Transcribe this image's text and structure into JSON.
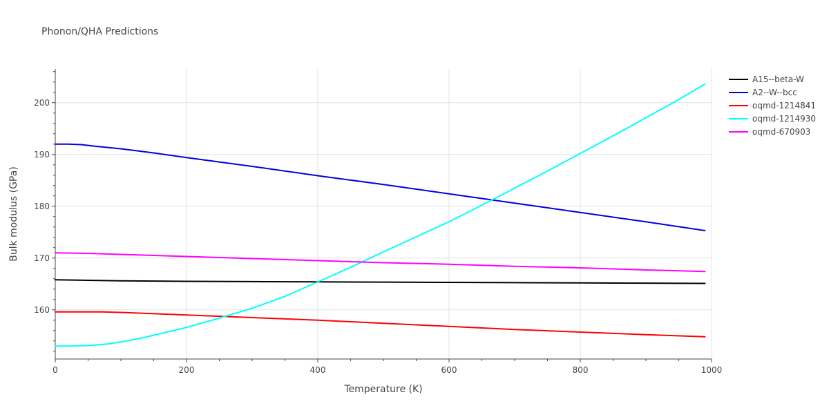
{
  "chart_data": {
    "type": "line",
    "title": "Phonon/QHA Predictions",
    "xlabel": "Temperature (K)",
    "ylabel": "Bulk modulus (GPa)",
    "xlim": [
      0,
      1000
    ],
    "ylim": [
      150.5,
      206.5
    ],
    "x_ticks": [
      0,
      200,
      400,
      600,
      800,
      1000
    ],
    "y_ticks": [
      160,
      170,
      180,
      190,
      200
    ],
    "grid": true,
    "legend_position": "top-right",
    "series": [
      {
        "name": "A15--beta-W",
        "color": "#000000",
        "x": [
          0,
          50,
          100,
          200,
          300,
          400,
          500,
          600,
          700,
          800,
          900,
          990
        ],
        "y": [
          165.8,
          165.7,
          165.6,
          165.5,
          165.45,
          165.4,
          165.35,
          165.3,
          165.25,
          165.2,
          165.15,
          165.1
        ]
      },
      {
        "name": "A2--W--bcc",
        "color": "#0000dd",
        "x": [
          0,
          20,
          40,
          60,
          100,
          150,
          200,
          300,
          400,
          500,
          600,
          700,
          800,
          900,
          990
        ],
        "y": [
          192.0,
          192.0,
          191.9,
          191.6,
          191.1,
          190.3,
          189.4,
          187.7,
          185.9,
          184.2,
          182.4,
          180.6,
          178.8,
          177.0,
          175.3
        ]
      },
      {
        "name": "oqmd-1214841",
        "color": "#ff0000",
        "x": [
          0,
          40,
          70,
          100,
          200,
          300,
          400,
          500,
          600,
          700,
          800,
          900,
          990
        ],
        "y": [
          159.6,
          159.6,
          159.6,
          159.5,
          159.0,
          158.5,
          158.0,
          157.4,
          156.8,
          156.2,
          155.7,
          155.2,
          154.8
        ]
      },
      {
        "name": "oqmd-1214930",
        "color": "#00ffff",
        "x": [
          0,
          20,
          50,
          80,
          100,
          130,
          160,
          200,
          250,
          300,
          350,
          400,
          450,
          500,
          550,
          600,
          650,
          700,
          750,
          800,
          850,
          900,
          950,
          990
        ],
        "y": [
          153.0,
          153.0,
          153.1,
          153.4,
          153.8,
          154.5,
          155.4,
          156.6,
          158.4,
          160.3,
          162.6,
          165.4,
          168.2,
          171.2,
          174.1,
          177.0,
          180.2,
          183.5,
          186.8,
          190.2,
          193.6,
          197.1,
          200.6,
          203.6
        ]
      },
      {
        "name": "oqmd-670903",
        "color": "#ff00ff",
        "x": [
          0,
          50,
          100,
          200,
          300,
          400,
          500,
          600,
          700,
          800,
          900,
          990
        ],
        "y": [
          171.0,
          170.9,
          170.7,
          170.3,
          169.9,
          169.5,
          169.1,
          168.8,
          168.4,
          168.1,
          167.7,
          167.4
        ]
      }
    ]
  }
}
